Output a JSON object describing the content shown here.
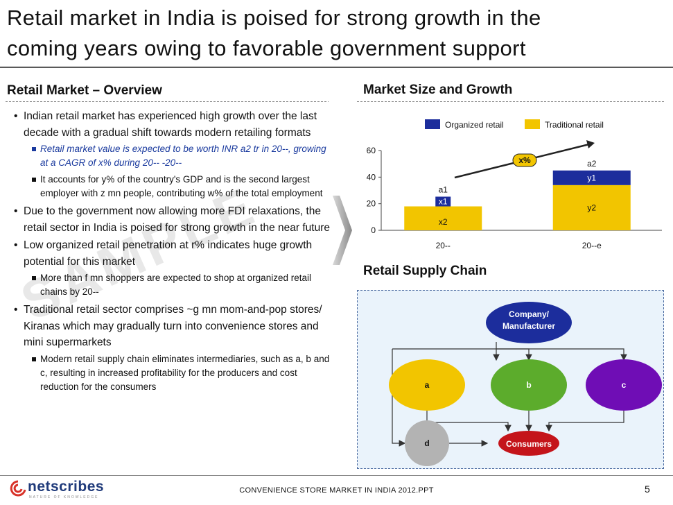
{
  "title": {
    "line1": "Retail market in India is poised for strong growth in the",
    "line2": "coming years owing to favorable government support"
  },
  "overview": {
    "heading": "Retail Market – Overview",
    "b1": "Indian retail market has experienced high growth over the last decade with a gradual shift towards modern retailing formats",
    "b1_s1": "Retail market value is expected to be worth INR a2 tr in 20--, growing at a CAGR of x% during 20-- -20--",
    "b1_s2": "It accounts for y% of the country's GDP and is the second largest employer with z mn people, contributing w% of the total employment",
    "b2": "Due to the government now allowing more FDI relaxations, the retail sector in India is poised for strong growth in the near future",
    "b3": "Low organized retail penetration at r% indicates huge growth potential for this market",
    "b3_s1": "More than f mn shoppers are expected to shop at organized retail chains by 20--",
    "b4": "Traditional retail sector comprises ~g mn mom-and-pop stores/ Kiranas which may gradually turn into convenience stores and mini supermarkets",
    "b4_s1": "Modern retail supply chain eliminates intermediaries, such as a, b and c, resulting in increased profitability for the producers and cost reduction for the consumers"
  },
  "watermark": "SAMPLE",
  "market": {
    "heading": "Market Size and Growth"
  },
  "chart_data": {
    "type": "bar",
    "stacked": true,
    "categories": [
      "20--",
      "20--e"
    ],
    "series": [
      {
        "name": "Traditional retail",
        "values": [
          18,
          34
        ],
        "labels": [
          "x2",
          "y2"
        ],
        "color": "#f2c500"
      },
      {
        "name": "Organized retail",
        "values": [
          0,
          11
        ],
        "labels": [
          "x1",
          "y1"
        ],
        "color": "#1c2d9c"
      }
    ],
    "totals": [
      "a1",
      "a2"
    ],
    "growth_label": "x%",
    "yticks": [
      "0",
      "20",
      "40",
      "60"
    ],
    "ylim": [
      0,
      60
    ],
    "legend": "top-right"
  },
  "supply": {
    "heading": "Retail Supply Chain",
    "company": [
      "Company/",
      "Manufacturer"
    ],
    "a": "a",
    "b": "b",
    "c": "c",
    "d": "d",
    "consumers": "Consumers",
    "colors": {
      "company": "#1c2d9c",
      "a": "#f2c500",
      "b": "#5cac2c",
      "c": "#6f0db5",
      "d": "#b3b3b3",
      "consumers": "#c4141a"
    }
  },
  "footer": {
    "logo": "netscribes",
    "tagline": "NATURE OF KNOWLEDGE",
    "center": "CONVENIENCE STORE MARKET IN INDIA 2012.PPT",
    "page": "5"
  }
}
